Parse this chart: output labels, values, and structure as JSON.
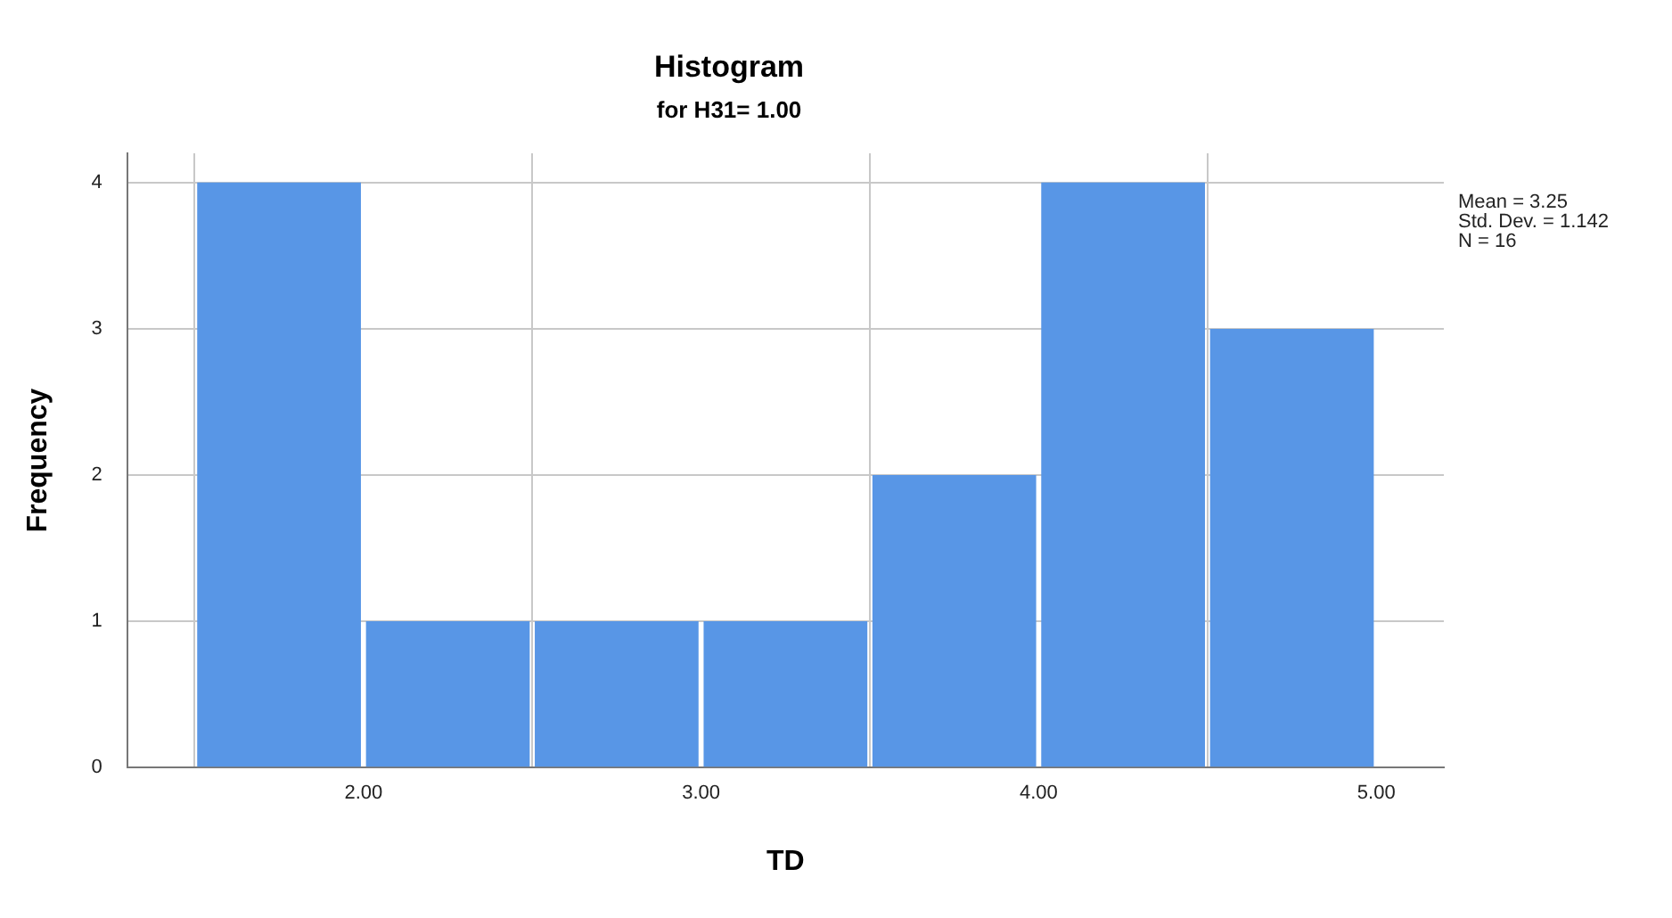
{
  "chart_data": {
    "type": "histogram",
    "title": "Histogram",
    "subtitle": "for H31= 1.00",
    "xlabel": "TD",
    "ylabel": "Frequency",
    "bins": [
      1.5,
      2,
      2.5,
      3,
      3.5,
      4,
      4.5,
      5
    ],
    "values": [
      4,
      1,
      1,
      1,
      2,
      4,
      3
    ],
    "color": "#5896e6",
    "xlim": [
      1.3,
      5.2
    ],
    "xticks": [
      {
        "value": 2,
        "label": "2.00"
      },
      {
        "value": 3,
        "label": "3.00"
      },
      {
        "value": 4,
        "label": "4.00"
      },
      {
        "value": 5,
        "label": "5.00"
      }
    ],
    "ylim": [
      0,
      4.2
    ],
    "yticks": [
      0,
      1,
      2,
      3,
      4
    ],
    "grid": true,
    "legend": false,
    "annotations": [
      "Mean = 3.25",
      "Std. Dev. = 1.142",
      "N = 16"
    ]
  }
}
